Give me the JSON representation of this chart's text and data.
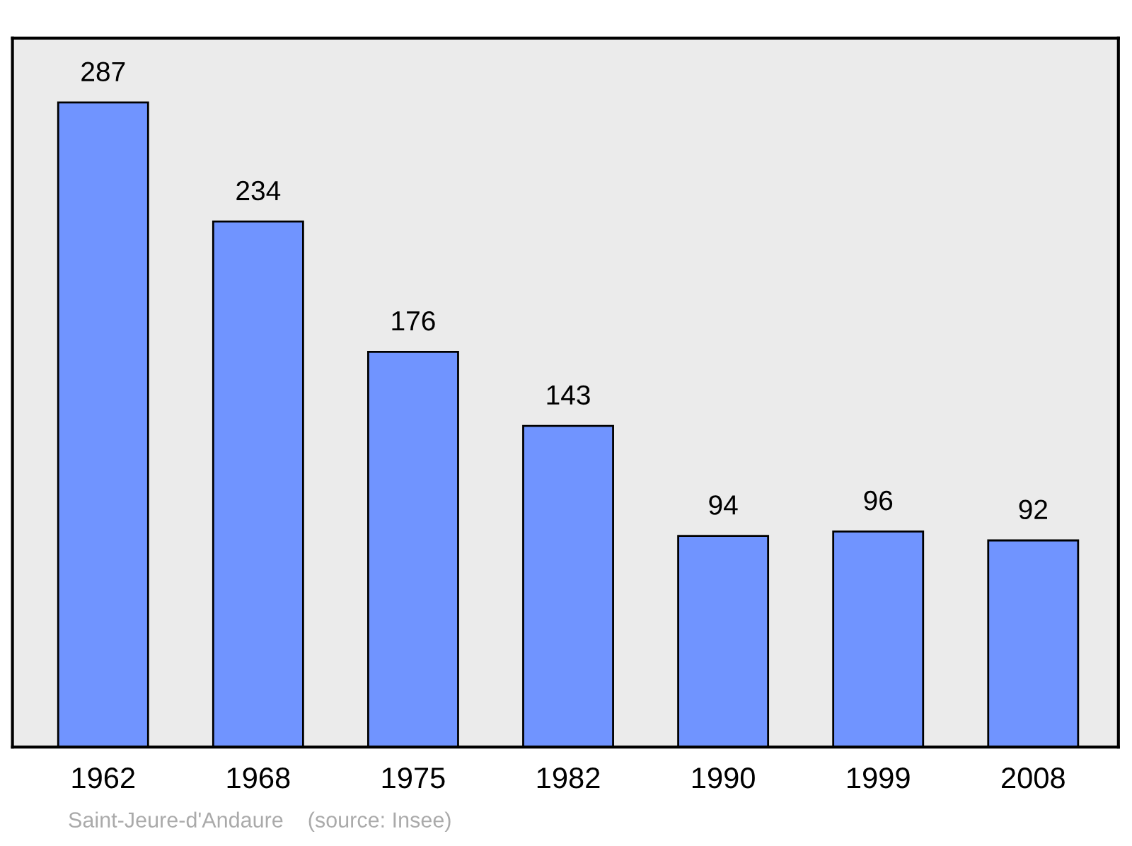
{
  "chart_data": {
    "type": "bar",
    "categories": [
      "1962",
      "1968",
      "1975",
      "1982",
      "1990",
      "1999",
      "2008"
    ],
    "values": [
      287,
      234,
      176,
      143,
      94,
      96,
      92
    ],
    "color": "#7094ff",
    "data_labels": true,
    "grid": false,
    "annotations": [
      "Saint-Jeure-d'Andaure    (source: Insee)"
    ]
  }
}
